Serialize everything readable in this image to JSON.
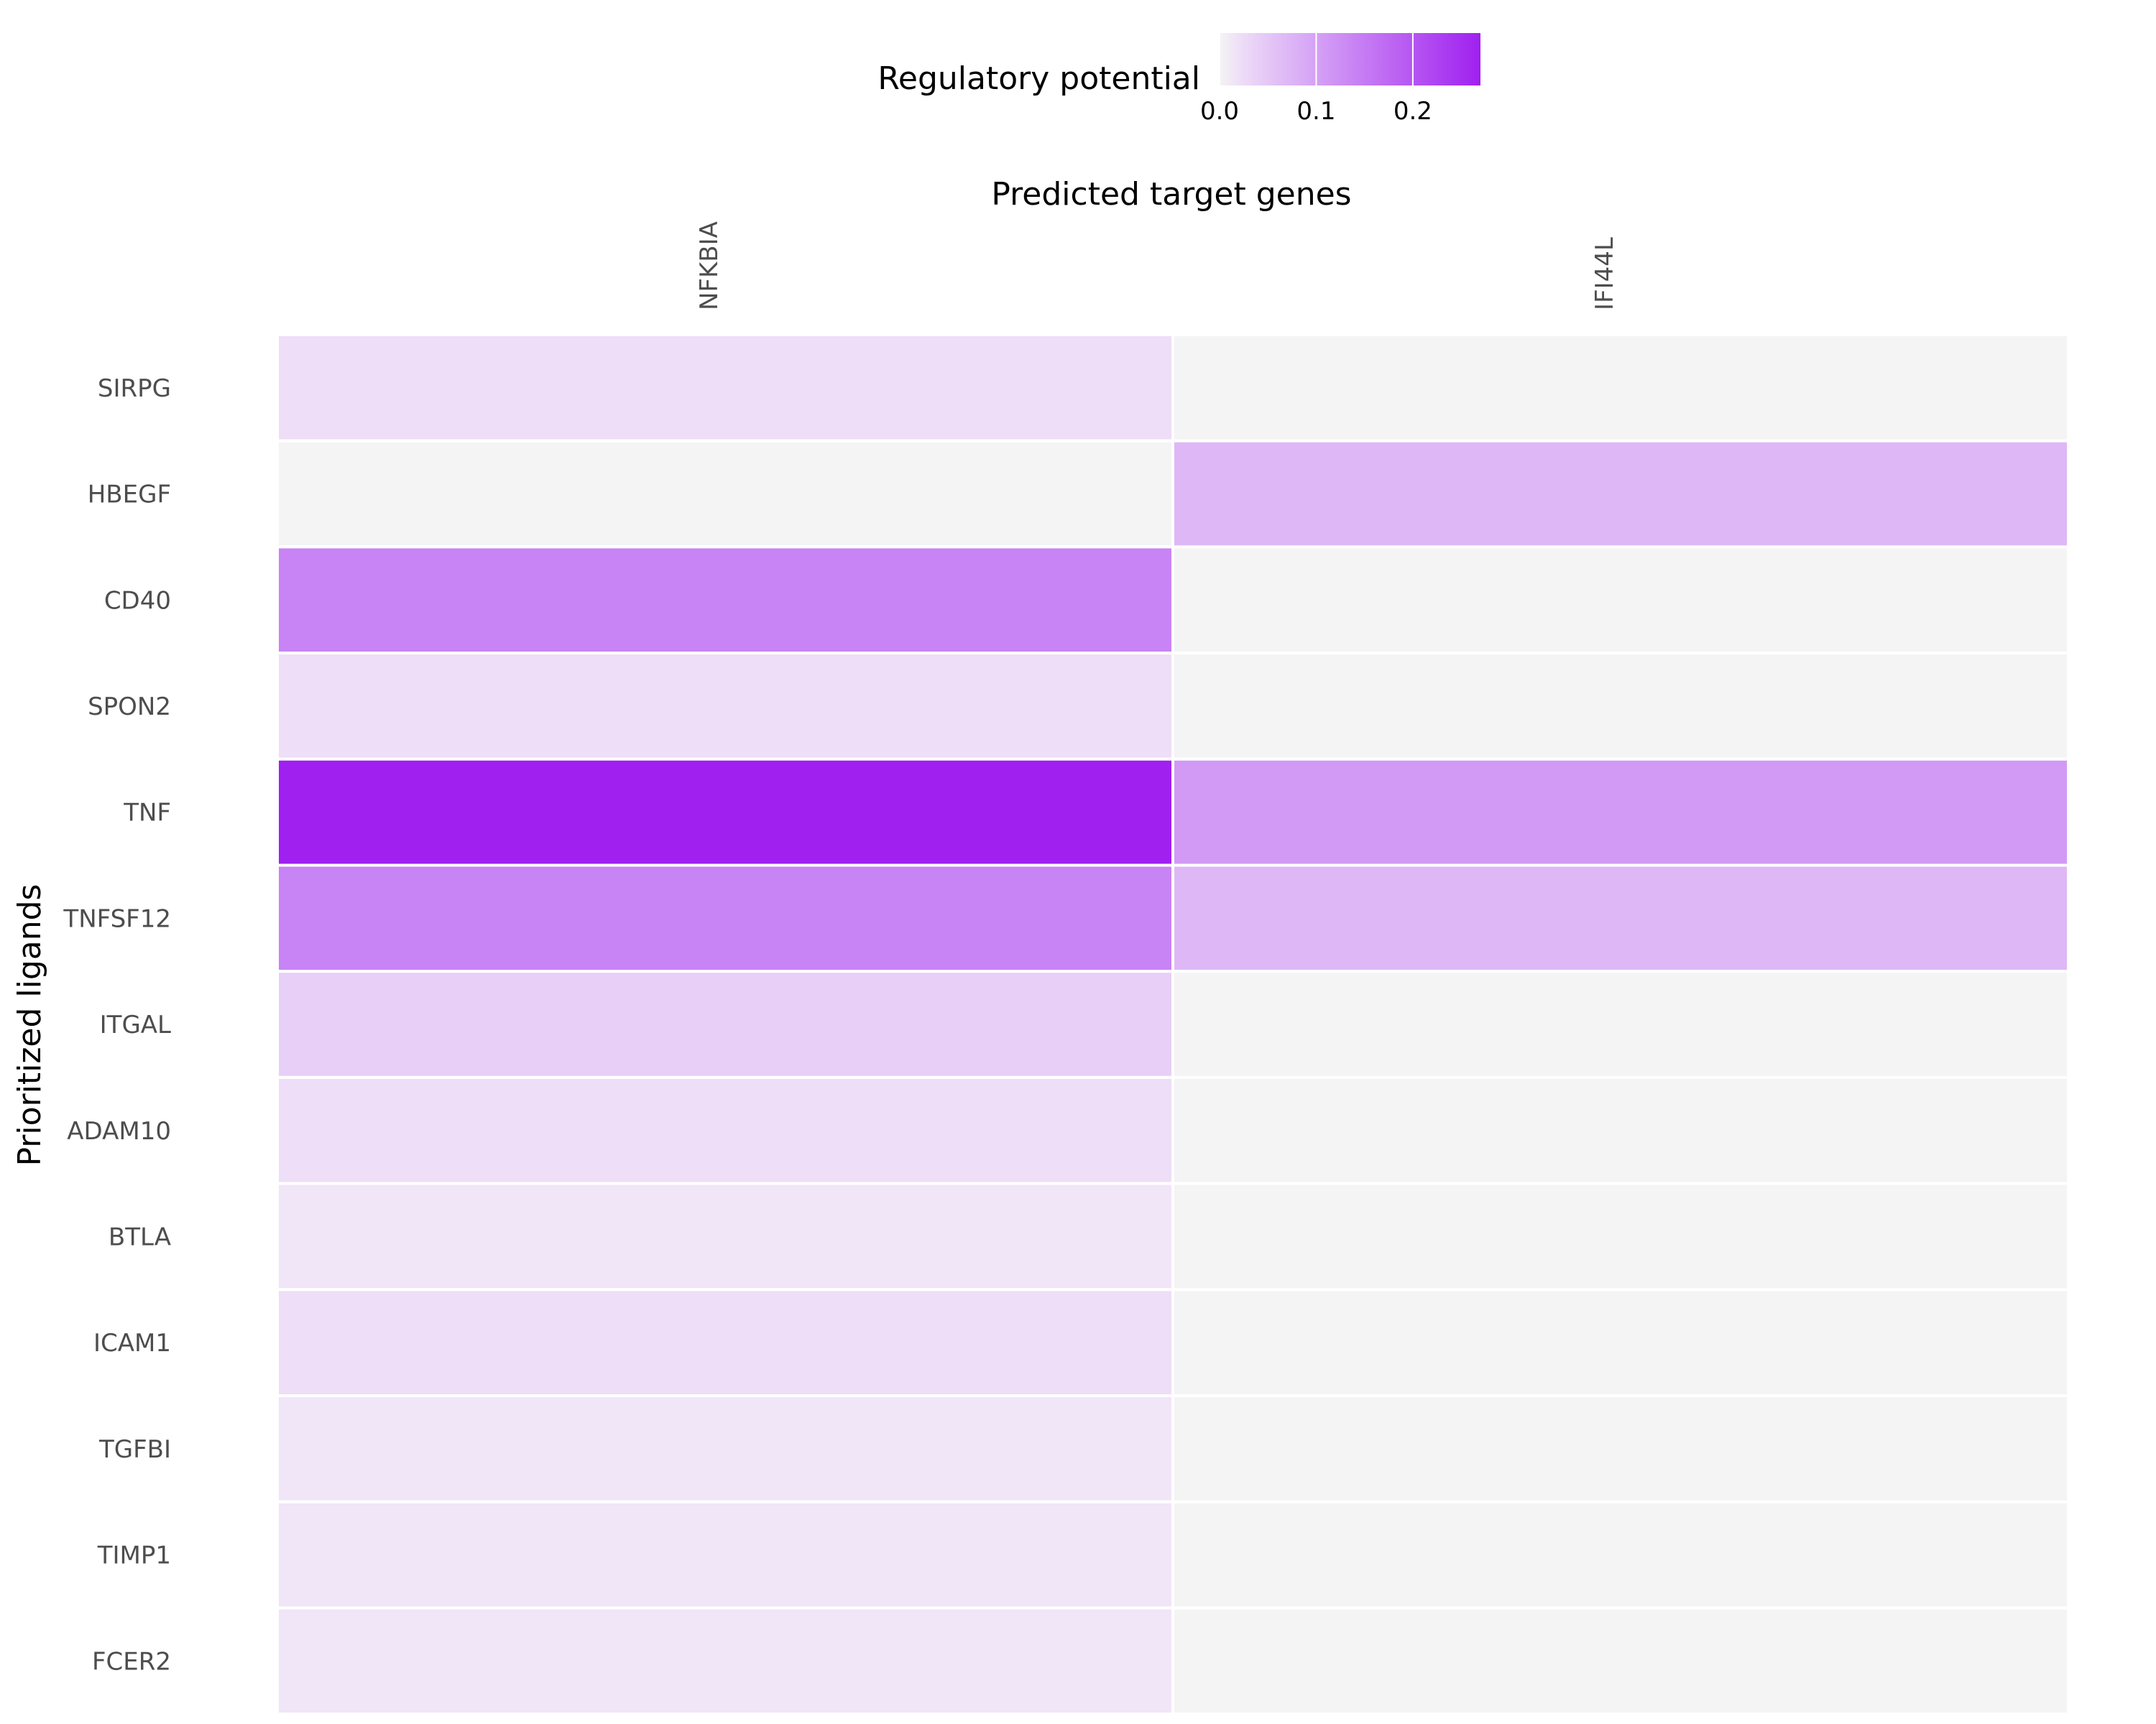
{
  "chart_data": {
    "type": "heatmap",
    "title": "",
    "xlabel": "Predicted target genes",
    "ylabel": "Prioritized ligands",
    "x_axis_position": "top",
    "columns": [
      "NFKBIA",
      "IFI44L"
    ],
    "rows": [
      "SIRPG",
      "HBEGF",
      "CD40",
      "SPON2",
      "TNF",
      "TNFSF12",
      "ITGAL",
      "ADAM10",
      "BTLA",
      "ICAM1",
      "TGFBI",
      "TIMP1",
      "FCER2"
    ],
    "values": [
      [
        0.02,
        0.0
      ],
      [
        0.0,
        0.07
      ],
      [
        0.14,
        0.0
      ],
      [
        0.02,
        0.0
      ],
      [
        0.27,
        0.11
      ],
      [
        0.14,
        0.07
      ],
      [
        0.04,
        0.0
      ],
      [
        0.02,
        0.0
      ],
      [
        0.01,
        0.0
      ],
      [
        0.02,
        0.0
      ],
      [
        0.01,
        0.0
      ],
      [
        0.01,
        0.0
      ],
      [
        0.01,
        0.0
      ]
    ],
    "grid": false,
    "legend": {
      "title": "Regulatory potential",
      "placement": "top",
      "ticks": [
        0.0,
        0.1,
        0.2
      ],
      "tick_labels": [
        "0.0",
        "0.1",
        "0.2"
      ],
      "range": [
        0,
        0.27
      ],
      "zero_color": "#f4f4f4",
      "low_color": "#f4edf8",
      "high_color": "#a020f0"
    }
  }
}
